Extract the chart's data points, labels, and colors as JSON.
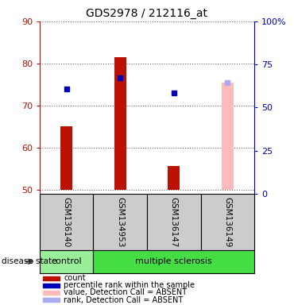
{
  "title": "GDS2978 / 212116_at",
  "samples": [
    "GSM136140",
    "GSM134953",
    "GSM136147",
    "GSM136149"
  ],
  "ylim_left": [
    49,
    90
  ],
  "ylim_right": [
    0,
    100
  ],
  "yticks_left": [
    50,
    60,
    70,
    80,
    90
  ],
  "yticks_right": [
    0,
    25,
    50,
    75,
    100
  ],
  "yticklabels_right": [
    "0",
    "25",
    "50",
    "75",
    "100%"
  ],
  "bar_values_red": [
    65.0,
    81.5,
    55.5,
    null
  ],
  "bar_values_pink": [
    null,
    null,
    null,
    75.5
  ],
  "dot_blue": [
    74.0,
    76.5,
    73.0,
    null
  ],
  "dot_lightblue": [
    null,
    null,
    null,
    75.5
  ],
  "bar_bottom": 50,
  "color_red": "#bb1100",
  "color_pink": "#ffbbbb",
  "color_blue": "#0000bb",
  "color_lightblue": "#aaaaee",
  "color_gray_box": "#cccccc",
  "color_control_green": "#99ee99",
  "color_ms_green": "#44dd44",
  "legend_items": [
    {
      "label": "count",
      "color": "#bb1100"
    },
    {
      "label": "percentile rank within the sample",
      "color": "#0000bb"
    },
    {
      "label": "value, Detection Call = ABSENT",
      "color": "#ffbbbb"
    },
    {
      "label": "rank, Detection Call = ABSENT",
      "color": "#aaaaee"
    }
  ],
  "figsize": [
    3.7,
    3.84
  ],
  "dpi": 100
}
